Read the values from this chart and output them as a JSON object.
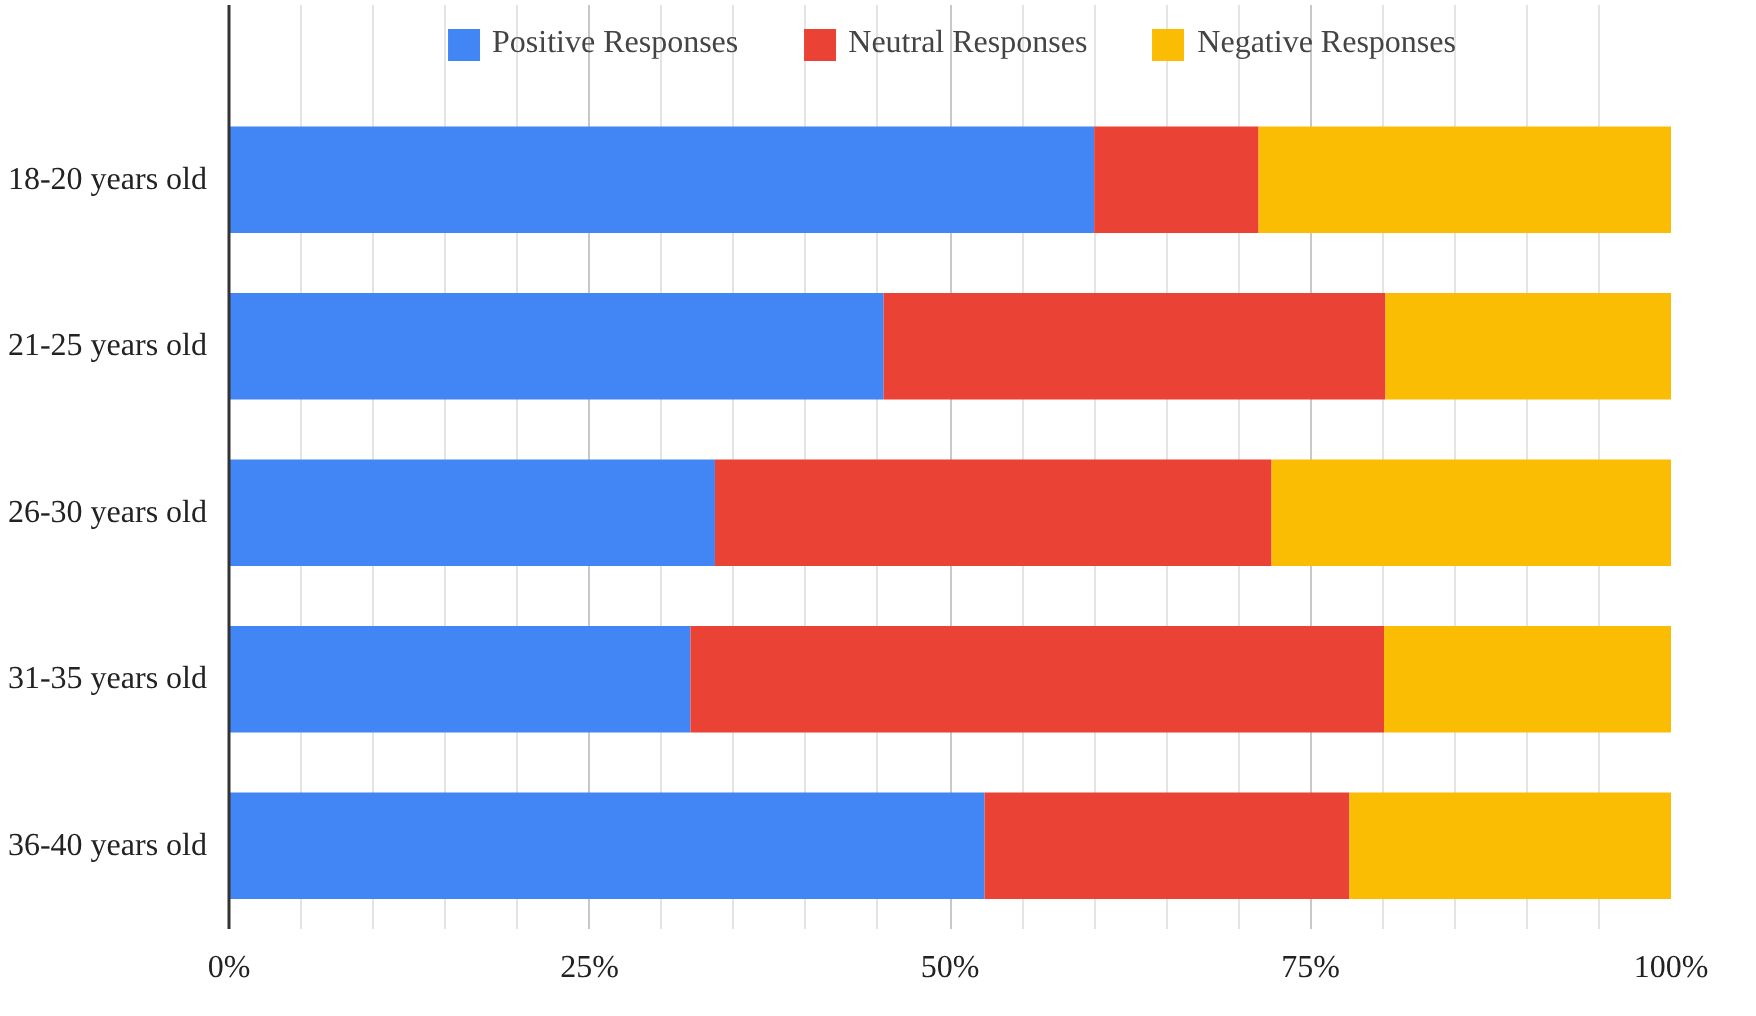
{
  "chart_data": {
    "type": "bar",
    "orientation": "horizontal",
    "stacked": true,
    "categories": [
      "18-20 years old",
      "21-25 years old",
      "26-30 years old",
      "31-35 years old",
      "36-40 years old"
    ],
    "series": [
      {
        "name": "Positive Responses",
        "color": "#4285f4",
        "values": [
          60,
          45.4,
          33.7,
          32,
          52.4
        ]
      },
      {
        "name": "Neutral Responses",
        "color": "#ea4335",
        "values": [
          11.4,
          34.8,
          38.6,
          48.1,
          25.3
        ]
      },
      {
        "name": "Negative Responses",
        "color": "#fbbc04",
        "values": [
          28.6,
          19.8,
          27.7,
          19.9,
          22.3
        ]
      }
    ],
    "xlim": [
      0,
      100
    ],
    "xticks": [
      {
        "value": 0,
        "label": "0%"
      },
      {
        "value": 5,
        "label": null
      },
      {
        "value": 10,
        "label": null
      },
      {
        "value": 15,
        "label": null
      },
      {
        "value": 20,
        "label": null
      },
      {
        "value": 25,
        "label": "25%"
      },
      {
        "value": 30,
        "label": null
      },
      {
        "value": 35,
        "label": null
      },
      {
        "value": 40,
        "label": null
      },
      {
        "value": 45,
        "label": null
      },
      {
        "value": 50,
        "label": "50%"
      },
      {
        "value": 55,
        "label": null
      },
      {
        "value": 60,
        "label": null
      },
      {
        "value": 65,
        "label": null
      },
      {
        "value": 70,
        "label": null
      },
      {
        "value": 75,
        "label": "75%"
      },
      {
        "value": 80,
        "label": null
      },
      {
        "value": 85,
        "label": null
      },
      {
        "value": 90,
        "label": null
      },
      {
        "value": 95,
        "label": null
      },
      {
        "value": 100,
        "label": "100%"
      }
    ],
    "grid": "x",
    "legend": "top"
  }
}
